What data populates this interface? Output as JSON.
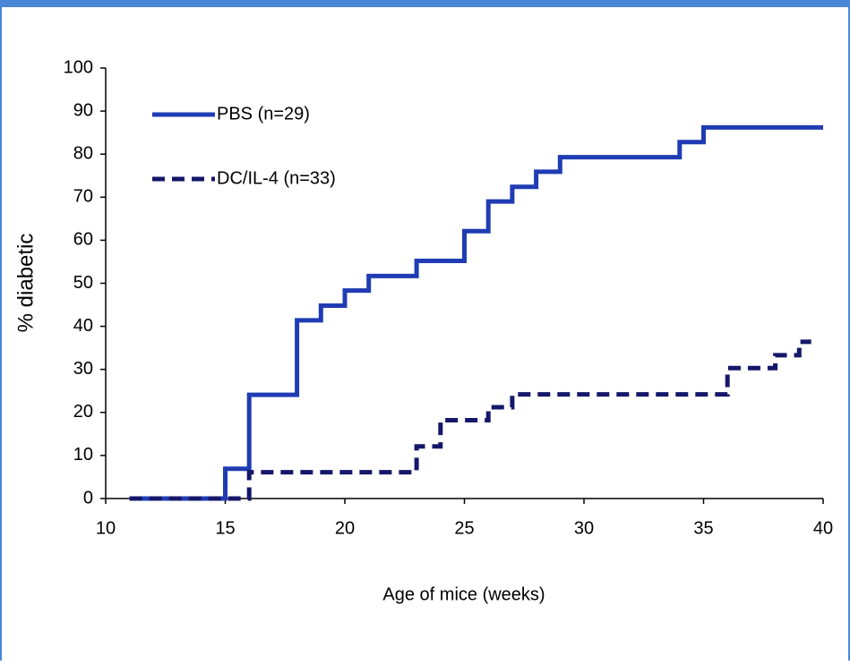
{
  "chart_data": {
    "type": "step",
    "x_label": "Age of mice (weeks)",
    "y_label": "% diabetic",
    "xlim": [
      10,
      40
    ],
    "xticks": [
      10,
      15,
      20,
      25,
      30,
      35,
      40
    ],
    "ylim": [
      0,
      100
    ],
    "yticks": [
      0,
      10,
      20,
      30,
      40,
      50,
      60,
      70,
      80,
      90,
      100
    ],
    "series": [
      {
        "name": "PBS (n=29)",
        "color": "#1f3cb4",
        "dashed": false,
        "x": [
          11,
          15,
          16,
          18,
          19,
          20,
          21,
          23,
          25,
          26,
          27,
          28,
          29,
          34,
          35,
          40
        ],
        "values": [
          0,
          6.9,
          24.1,
          41.4,
          44.8,
          48.3,
          51.7,
          55.2,
          62.1,
          69.0,
          72.4,
          75.9,
          79.3,
          82.8,
          86.2,
          86.2
        ]
      },
      {
        "name": "DC/IL-4 (n=33)",
        "color": "#15176a",
        "dashed": true,
        "x": [
          11,
          16,
          23,
          24,
          26,
          27,
          36,
          38,
          39,
          39.5
        ],
        "values": [
          0,
          6.1,
          12.1,
          18.2,
          21.2,
          24.2,
          30.3,
          33.3,
          36.4,
          36.4
        ]
      }
    ]
  }
}
